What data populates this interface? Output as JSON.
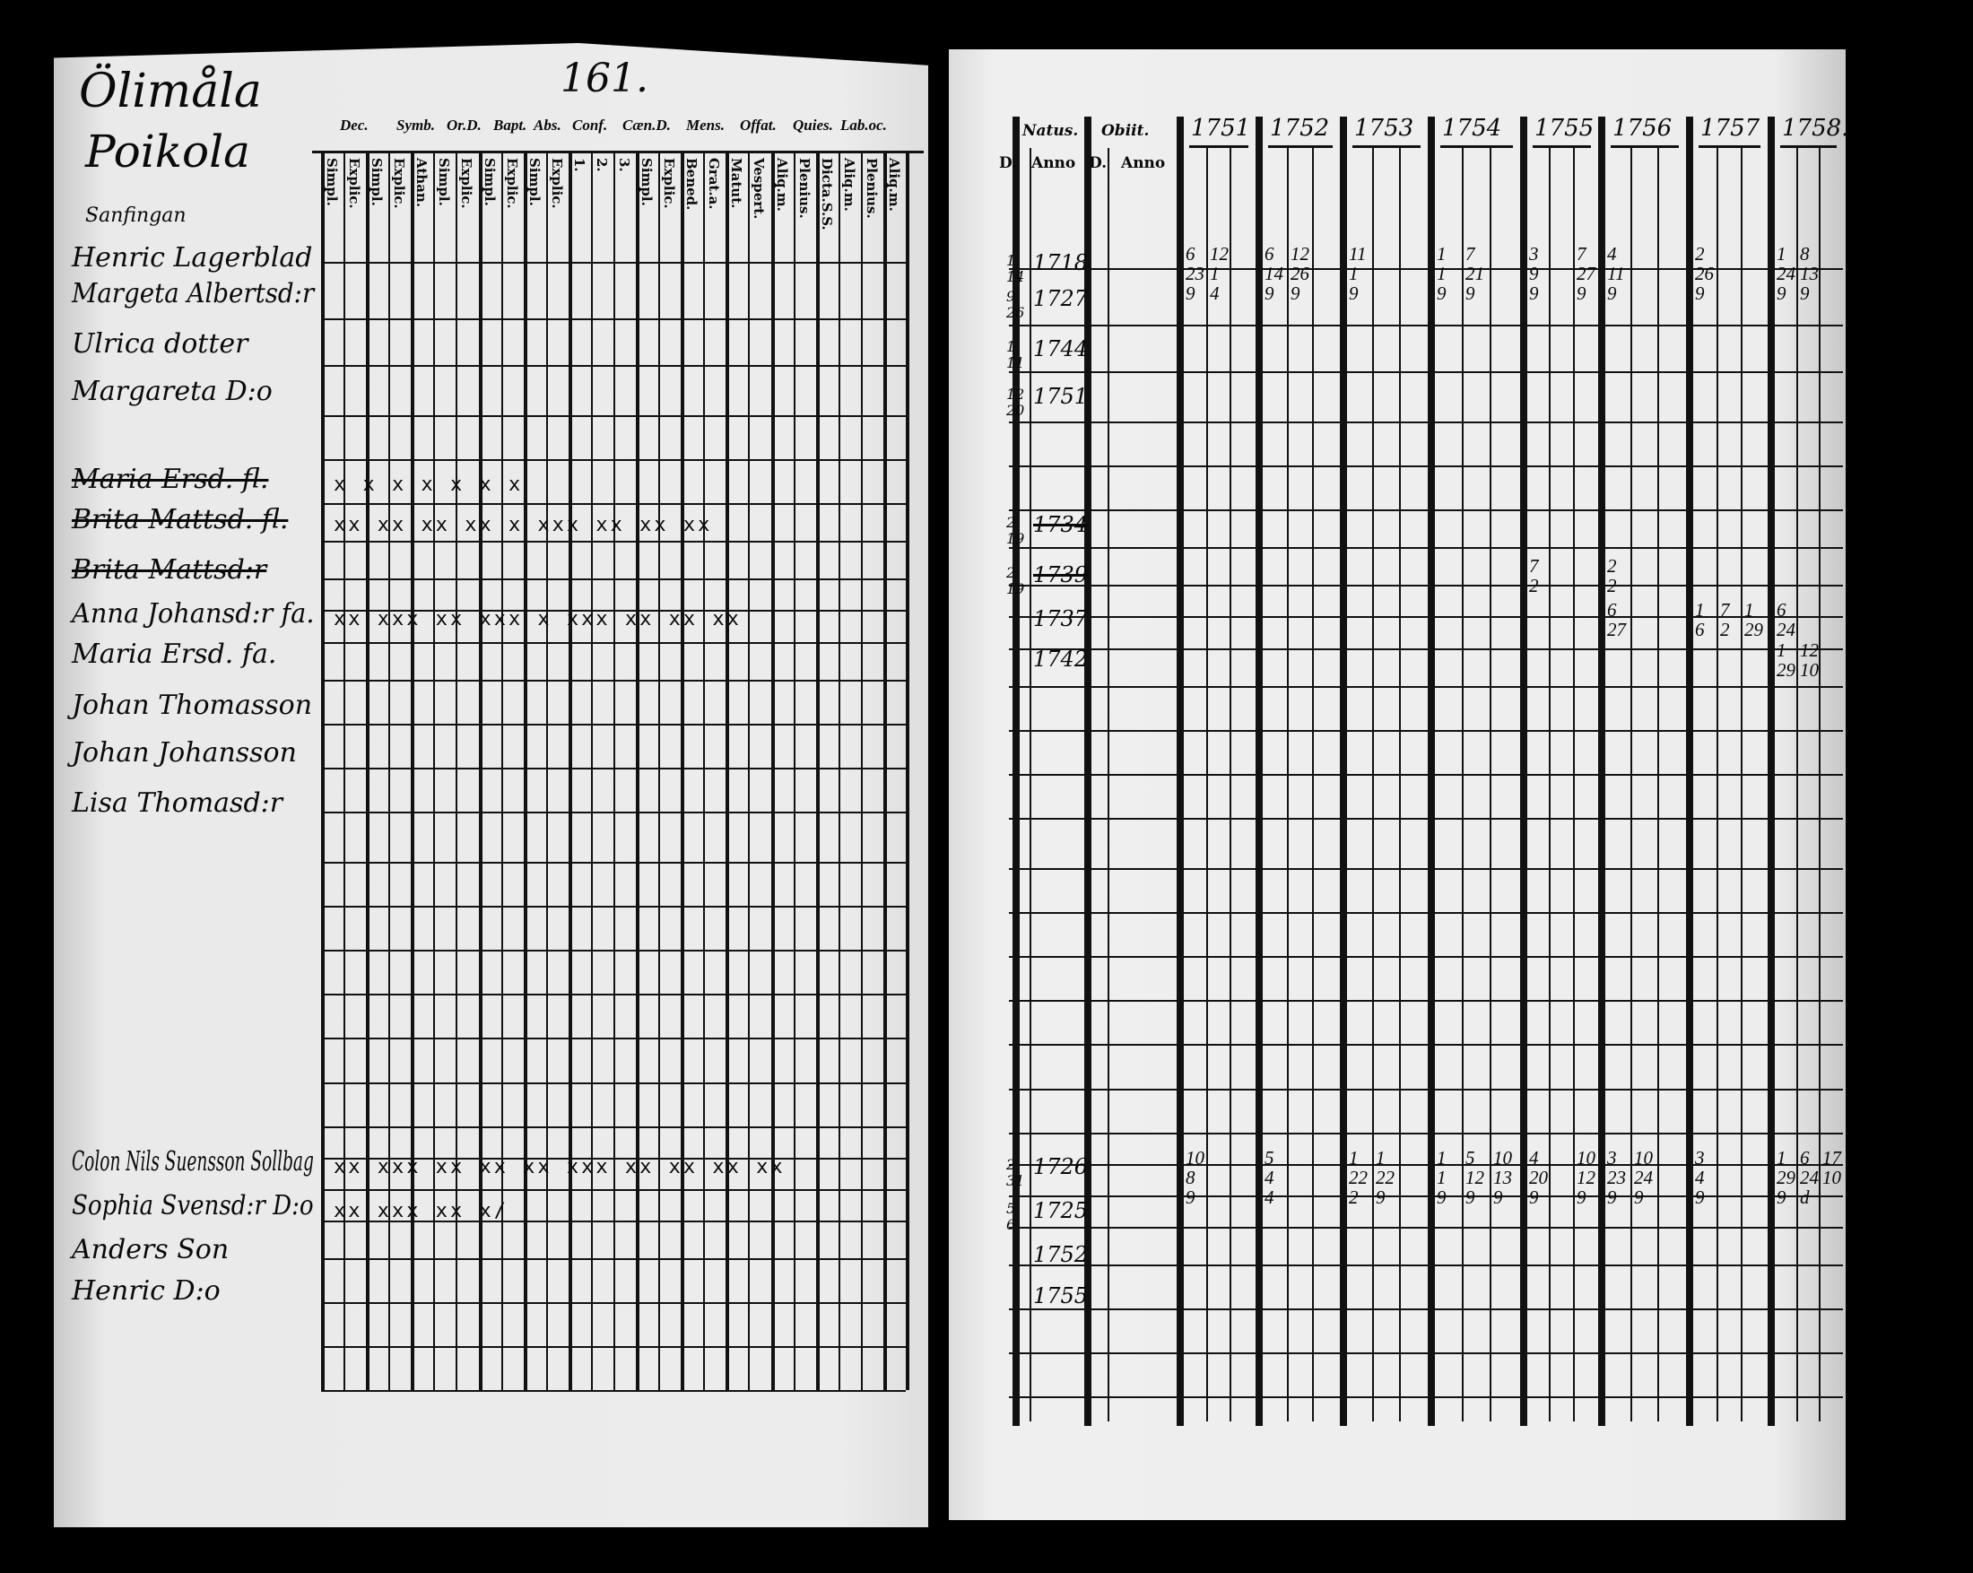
{
  "left_page": {
    "parish": "Ölimåla",
    "village": "Poikola",
    "page_number": "161.",
    "household_note": "Sanfingan",
    "column_headers": [
      "Dec.",
      "Symb.",
      "Or.D.",
      "Bapt.",
      "Abs.",
      "Conf.",
      "Cæn.D.",
      "Mens.",
      "Offat.",
      "Quies.",
      "Lab.oc."
    ],
    "sub_headers": [
      "Simpl.",
      "Explic.",
      "Simpl.",
      "Explic.",
      "Athan.",
      "Simpl.",
      "Explic.",
      "Simpl.",
      "Explic.",
      "Simpl.",
      "Explic.",
      "1.",
      "2.",
      "3.",
      "Simpl.",
      "Explic.",
      "Bened.",
      "Grat.a.",
      "Matut.",
      "Vespert.",
      "Aliq.m.",
      "Plenius.",
      "Dicta.S.S.",
      "Aliq.m.",
      "Plenius.",
      "Aliq.m."
    ]
  },
  "right_page": {
    "headers": {
      "natus": "Natus.",
      "obiit": "Obiit.",
      "d": "D.",
      "anno": "Anno"
    },
    "years": [
      "1751",
      "1752",
      "1753",
      "1754",
      "1755",
      "1756",
      "1757",
      "1758."
    ]
  },
  "entries": [
    {
      "name": "Henric Lagerblad",
      "struck": false,
      "natus_d": [
        "1",
        "14"
      ],
      "natus_anno": "1718",
      "marks": "",
      "year_marks": {
        "1751": [
          [
            "6",
            "12"
          ],
          [
            "23",
            "1"
          ],
          [
            "9",
            "4"
          ]
        ],
        "1752": [
          [
            "6",
            "12"
          ],
          [
            "14",
            "26"
          ],
          [
            "9",
            "9"
          ]
        ],
        "1753": [
          [
            "11"
          ],
          [
            "1"
          ],
          [
            "9"
          ]
        ],
        "1754": [
          [
            "1",
            "7"
          ],
          [
            "1",
            "21"
          ],
          [
            "9",
            "9"
          ]
        ],
        "1755": [
          [
            "3",
            "",
            "7"
          ],
          [
            "9",
            "",
            "27"
          ],
          [
            "9",
            "",
            "9"
          ]
        ],
        "1756": [
          [
            "4"
          ],
          [
            "11"
          ],
          [
            "9"
          ]
        ],
        "1757": [
          [
            "2"
          ],
          [
            "26"
          ],
          [
            "9"
          ]
        ],
        "1758": [
          [
            "1",
            "8"
          ],
          [
            "24",
            "13"
          ],
          [
            "9",
            "9"
          ]
        ]
      }
    },
    {
      "name": "Margeta Albertsd:r",
      "struck": false,
      "natus_d": [
        "9",
        "26"
      ],
      "natus_anno": "1727",
      "marks": ""
    },
    {
      "name": "Ulrica dotter",
      "struck": false,
      "natus_d": [
        "1",
        "11"
      ],
      "natus_anno": "1744",
      "marks": ""
    },
    {
      "name": "Margareta D:o",
      "struck": false,
      "natus_d": [
        "12",
        "20"
      ],
      "natus_anno": "1751",
      "marks": ""
    },
    {
      "name": "Maria Ersd. fl.",
      "struck": true,
      "natus_d": [],
      "natus_anno": "",
      "marks": "x  x   x  x         x    x  x"
    },
    {
      "name": "Brita Mattsd. fl.",
      "struck": true,
      "natus_d": [
        "2",
        "19"
      ],
      "natus_anno": "1734",
      "marks": "xx xx  xx xx x  xxx xx xx xx"
    },
    {
      "name": "Brita Mattsd:r",
      "struck": true,
      "natus_d": [
        "2",
        "19"
      ],
      "natus_anno": "1739",
      "marks": "",
      "year_marks": {
        "1755": [
          [
            "7"
          ],
          [
            "2"
          ]
        ],
        "1756": [
          [
            "2"
          ],
          [
            "2"
          ]
        ]
      }
    },
    {
      "name": "Anna Johansd:r fa.",
      "struck": false,
      "natus_d": [],
      "natus_anno": "1737",
      "marks": "xx xxx xx xxx x xxx xx xx xx",
      "year_marks": {
        "1756": [
          [
            "6"
          ],
          [
            "27"
          ]
        ],
        "1757": [
          [
            "1",
            "7",
            "1"
          ],
          [
            "6",
            "2",
            "29"
          ]
        ],
        "1758": [
          [
            "6"
          ],
          [
            "24"
          ]
        ]
      }
    },
    {
      "name": "Maria Ersd. fa.",
      "struck": false,
      "natus_d": [],
      "natus_anno": "1742",
      "marks": "",
      "year_marks": {
        "1758": [
          [
            "1",
            "12"
          ],
          [
            "29",
            "10"
          ]
        ]
      }
    },
    {
      "name": "Johan Thomasson",
      "struck": false,
      "natus_d": [],
      "natus_anno": "",
      "marks": ""
    },
    {
      "name": "Johan Johansson",
      "struck": false,
      "natus_d": [],
      "natus_anno": "",
      "marks": ""
    },
    {
      "name": "Lisa Thomasd:r",
      "struck": false,
      "natus_d": [],
      "natus_anno": "",
      "marks": ""
    },
    {
      "name": "Colon Nils Suensson Sollbag",
      "struck": false,
      "natus_d": [
        "2",
        "31"
      ],
      "natus_anno": "1726",
      "marks": "xx xxx xx xx xx xxx xx xx xx xx",
      "year_marks": {
        "1751": [
          [
            "10"
          ],
          [
            "8"
          ],
          [
            "9"
          ]
        ],
        "1752": [
          [
            "5"
          ],
          [
            "4"
          ],
          [
            "4"
          ]
        ],
        "1753": [
          [
            "1",
            "1"
          ],
          [
            "22",
            "22"
          ],
          [
            "2",
            "9"
          ]
        ],
        "1754": [
          [
            "1",
            "5",
            "10"
          ],
          [
            "1",
            "12",
            "13"
          ],
          [
            "9",
            "9",
            "9"
          ]
        ],
        "1755": [
          [
            "4",
            "",
            "10"
          ],
          [
            "20",
            "",
            "12"
          ],
          [
            "9",
            "",
            "9"
          ]
        ],
        "1756": [
          [
            "3",
            "10"
          ],
          [
            "23",
            "24"
          ],
          [
            "9",
            "9"
          ]
        ],
        "1757": [
          [
            "3"
          ],
          [
            "4"
          ],
          [
            "9"
          ]
        ],
        "1758": [
          [
            "1",
            "6",
            "17"
          ],
          [
            "29",
            "24",
            "10"
          ],
          [
            "9",
            "d",
            ""
          ]
        ]
      }
    },
    {
      "name": "Sophia Svensd:r D:o",
      "struck": false,
      "natus_d": [
        "5",
        "6"
      ],
      "natus_anno": "1725",
      "marks": "xx xxx xx                   x/"
    },
    {
      "name": "Anders Son",
      "struck": false,
      "natus_d": [],
      "natus_anno": "1752",
      "marks": ""
    },
    {
      "name": "Henric D:o",
      "struck": false,
      "natus_d": [],
      "natus_anno": "1755",
      "marks": ""
    }
  ]
}
